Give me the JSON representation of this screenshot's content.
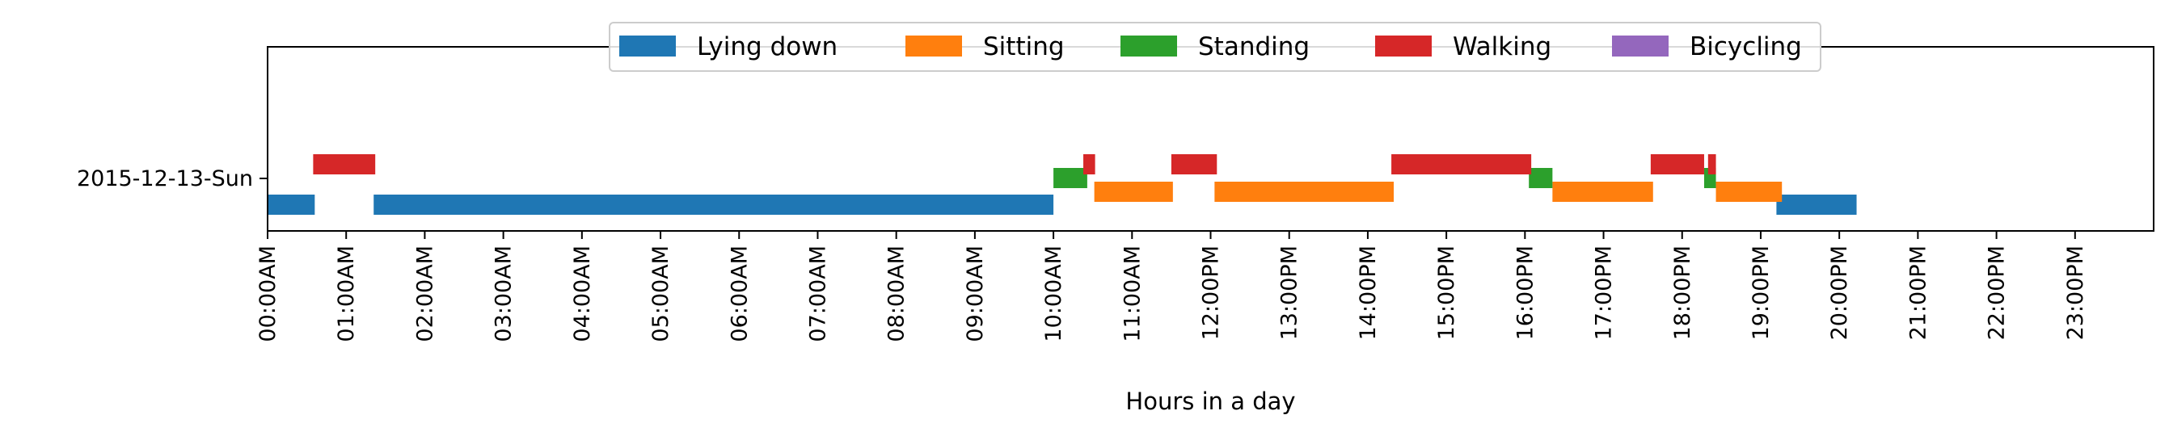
{
  "chart_data": {
    "type": "bar",
    "orientation": "horizontal-timeline",
    "xlabel": "Hours in a day",
    "ylabel": "",
    "xlim": [
      0,
      24
    ],
    "x_ticks": [
      "00:00AM",
      "01:00AM",
      "02:00AM",
      "03:00AM",
      "04:00AM",
      "05:00AM",
      "06:00AM",
      "07:00AM",
      "08:00AM",
      "09:00AM",
      "10:00AM",
      "11:00AM",
      "12:00PM",
      "13:00PM",
      "14:00PM",
      "15:00PM",
      "16:00PM",
      "17:00PM",
      "18:00PM",
      "19:00PM",
      "20:00PM",
      "21:00PM",
      "22:00PM",
      "23:00PM"
    ],
    "categories": [
      "2015-12-13-Sun"
    ],
    "legend_position": "top-center",
    "series": [
      {
        "name": "Lying down",
        "color": "#1f77b4",
        "segments": [
          [
            0.0,
            0.6
          ],
          [
            1.35,
            10.0
          ],
          [
            19.2,
            20.22
          ]
        ]
      },
      {
        "name": "Sitting",
        "color": "#ff7f0e",
        "segments": [
          [
            10.52,
            11.52
          ],
          [
            12.05,
            14.33
          ],
          [
            16.35,
            17.63
          ],
          [
            18.43,
            19.27
          ]
        ]
      },
      {
        "name": "Standing",
        "color": "#2ca02c",
        "segments": [
          [
            10.0,
            10.43
          ],
          [
            16.05,
            16.35
          ],
          [
            18.28,
            18.43
          ]
        ]
      },
      {
        "name": "Walking",
        "color": "#d62728",
        "segments": [
          [
            0.58,
            1.37
          ],
          [
            10.38,
            10.53
          ],
          [
            11.5,
            12.08
          ],
          [
            14.3,
            16.08
          ],
          [
            17.6,
            18.28
          ],
          [
            18.33,
            18.43
          ]
        ]
      },
      {
        "name": "Bicycling",
        "color": "#9467bd",
        "segments": []
      }
    ]
  }
}
